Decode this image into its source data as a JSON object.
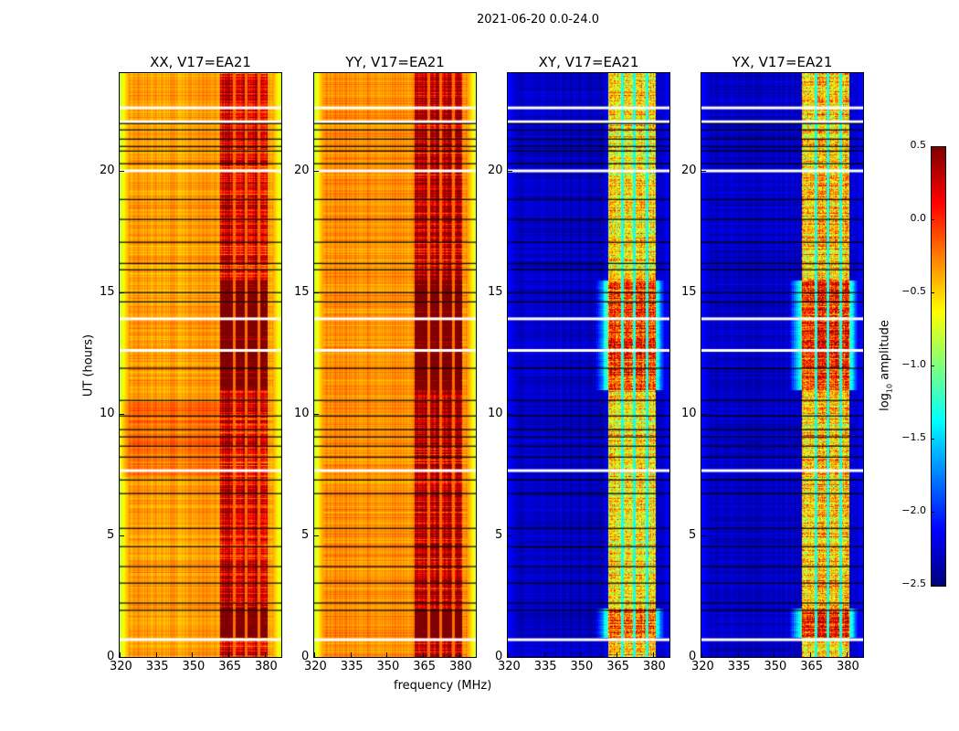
{
  "chart_data": {
    "type": "heatmap",
    "suptitle": "2021-06-20 0.0-24.0",
    "xlabel": "frequency (MHz)",
    "ylabel": "UT (hours)",
    "xlim": [
      320,
      386.8
    ],
    "ylim": [
      0,
      24
    ],
    "xticks": [
      320,
      335,
      350,
      365,
      380
    ],
    "yticks": [
      0,
      5,
      10,
      15,
      20
    ],
    "panels": [
      {
        "title": "XX, V17=EA21",
        "base": -0.35,
        "band": 0.2,
        "edge": -0.8
      },
      {
        "title": "YY, V17=EA21",
        "base": -0.3,
        "band": 0.3,
        "edge": -0.8
      },
      {
        "title": "XY, V17=EA21",
        "base": -2.3,
        "band": -0.6,
        "edge": -2.1
      },
      {
        "title": "YX, V17=EA21",
        "base": -2.3,
        "band": -0.5,
        "edge": -2.1
      }
    ],
    "band_mhz": [
      361.5,
      381
    ],
    "channel_gaps_mhz": [
      367,
      372,
      377.5
    ],
    "flagged_hours_white": [
      22.57,
      22.0,
      19.98,
      13.9,
      12.6,
      7.66,
      0.71
    ],
    "flagged_hours_black": [
      21.93,
      21.67,
      21.29,
      20.99,
      20.8,
      20.28,
      18.81,
      17.99,
      17.05,
      16.18,
      15.92,
      14.98,
      14.6,
      11.87,
      10.55,
      9.91,
      9.35,
      9.05,
      8.67,
      8.22,
      7.28,
      6.72,
      5.29,
      4.54,
      3.72,
      3.04,
      2.22,
      1.92
    ],
    "colorbar": {
      "label": "log10 amplitude",
      "label_main": "log",
      "label_sub": "10",
      "label_rest": " amplitude",
      "range": [
        -2.5,
        0.5
      ],
      "ticks": [
        0.5,
        0.0,
        -0.5,
        -1.0,
        -1.5,
        -2.0,
        -2.5
      ],
      "tick_labels": [
        "0.5",
        "0.0",
        "−0.5",
        "−1.0",
        "−1.5",
        "−2.0",
        "−2.5"
      ],
      "colormap": "jet"
    }
  }
}
